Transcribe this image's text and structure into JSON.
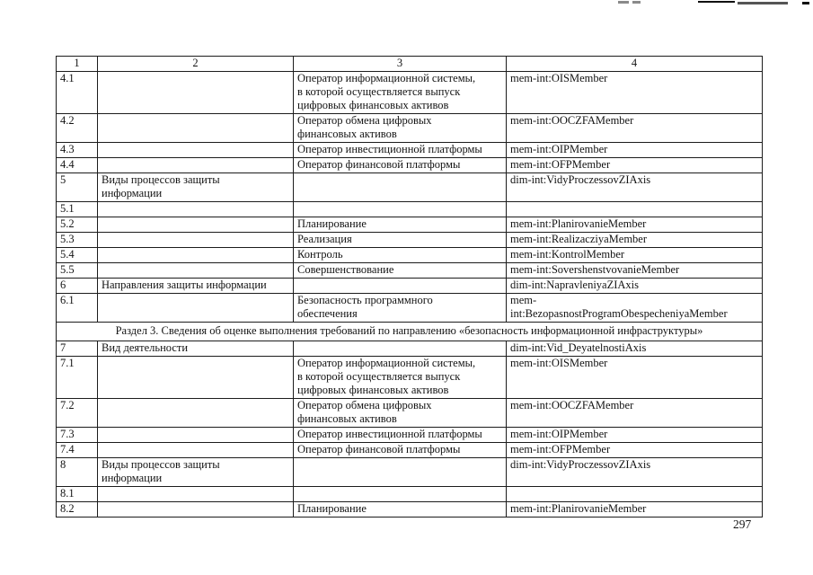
{
  "page": {
    "number": "297"
  },
  "table": {
    "column_headers": [
      "1",
      "2",
      "3",
      "4"
    ],
    "rows": [
      {
        "num": "4.1",
        "name": "",
        "member": "Оператор информационной системы,\nв которой осуществляется выпуск\nцифровых финансовых активов",
        "code": "mem-int:OISMember"
      },
      {
        "num": "4.2",
        "name": "",
        "member": "Оператор обмена цифровых\nфинансовых активов",
        "code": "mem-int:OOCZFAMember"
      },
      {
        "num": "4.3",
        "name": "",
        "member": "Оператор инвестиционной платформы",
        "code": "mem-int:OIPMember"
      },
      {
        "num": "4.4",
        "name": "",
        "member": "Оператор финансовой платформы",
        "code": "mem-int:OFPMember"
      },
      {
        "num": "5",
        "name": "Виды процессов защиты\nинформации",
        "member": "",
        "code": "dim-int:VidyProczessovZIAxis"
      },
      {
        "num": "5.1",
        "name": "",
        "member": "",
        "code": ""
      },
      {
        "num": "5.2",
        "name": "",
        "member": "Планирование",
        "code": "mem-int:PlanirovanieMember"
      },
      {
        "num": "5.3",
        "name": "",
        "member": "Реализация",
        "code": "mem-int:RealizacziyaMember"
      },
      {
        "num": "5.4",
        "name": "",
        "member": "Контроль",
        "code": "mem-int:KontrolMember"
      },
      {
        "num": "5.5",
        "name": "",
        "member": "Совершенствование",
        "code": "mem-int:SovershenstvovanieMember"
      },
      {
        "num": "6",
        "name": "Направления защиты информации",
        "member": "",
        "code": "dim-int:NapravleniyaZIAxis"
      },
      {
        "num": "6.1",
        "name": "",
        "member": "Безопасность программного\nобеспечения",
        "code": "mem-\nint:BezopasnostProgramObespecheniyaMember"
      },
      {
        "section": "Раздел 3. Сведения об оценке выполнения требований по направлению «безопасность информационной инфраструктуры»"
      },
      {
        "num": "7",
        "name": "Вид деятельности",
        "member": "",
        "code": "dim-int:Vid_DeyatelnostiAxis"
      },
      {
        "num": "7.1",
        "name": "",
        "member": "Оператор информационной системы,\nв которой осуществляется выпуск\nцифровых финансовых активов",
        "code": "mem-int:OISMember"
      },
      {
        "num": "7.2",
        "name": "",
        "member": "Оператор обмена цифровых\nфинансовых активов",
        "code": "mem-int:OOCZFAMember"
      },
      {
        "num": "7.3",
        "name": "",
        "member": "Оператор инвестиционной платформы",
        "code": "mem-int:OIPMember"
      },
      {
        "num": "7.4",
        "name": "",
        "member": "Оператор финансовой платформы",
        "code": "mem-int:OFPMember"
      },
      {
        "num": "8",
        "name": "Виды процессов защиты\nинформации",
        "member": "",
        "code": "dim-int:VidyProczessovZIAxis"
      },
      {
        "num": "8.1",
        "name": "",
        "member": "",
        "code": ""
      },
      {
        "num": "8.2",
        "name": "",
        "member": "Планирование",
        "code": "mem-int:PlanirovanieMember"
      }
    ]
  }
}
